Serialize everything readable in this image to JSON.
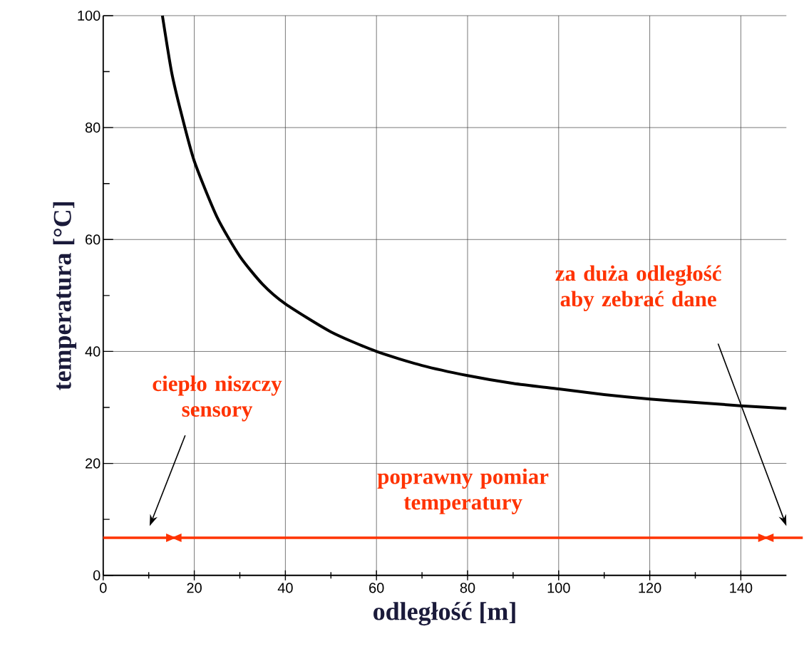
{
  "chart_data": {
    "type": "line",
    "xlabel": "odległość [m]",
    "ylabel": "temperatura [°C]",
    "x": [
      13,
      15,
      17,
      20,
      25,
      30,
      35,
      40,
      50,
      60,
      70,
      80,
      90,
      100,
      110,
      120,
      130,
      140,
      150
    ],
    "series": [
      {
        "color": "#000000",
        "values": [
          100,
          90,
          83,
          74,
          64,
          57,
          52,
          48.5,
          43.5,
          40,
          37.5,
          35.7,
          34.3,
          33.3,
          32.3,
          31.5,
          30.9,
          30.3,
          29.8
        ]
      }
    ],
    "xlim": [
      0,
      150
    ],
    "ylim": [
      0,
      100
    ],
    "xticks": [
      0,
      20,
      40,
      60,
      80,
      100,
      120,
      140
    ],
    "yticks": [
      0,
      20,
      40,
      60,
      80,
      100
    ],
    "grid": true,
    "marker": "none",
    "line_style": "solid",
    "ref_lines": [
      {
        "axis": "y",
        "value": 6.7,
        "color": "#ff3300"
      }
    ],
    "annotations": [
      "ciepło niszczy sensory",
      "poprawny pomiar temperatury",
      "za duża odległość aby zebrać dane"
    ]
  }
}
